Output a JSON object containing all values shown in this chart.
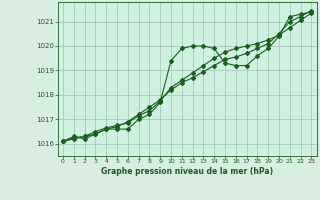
{
  "bg_color": "#d8eee0",
  "plot_bg_color": "#d0f0e0",
  "grid_color": "#a8c8b8",
  "line_color": "#1a5e20",
  "title": "Graphe pression niveau de la mer (hPa)",
  "xlim": [
    -0.5,
    23.5
  ],
  "ylim": [
    1015.5,
    1021.8
  ],
  "yticks": [
    1016,
    1017,
    1018,
    1019,
    1020,
    1021
  ],
  "xticks": [
    0,
    1,
    2,
    3,
    4,
    5,
    6,
    7,
    8,
    9,
    10,
    11,
    12,
    13,
    14,
    15,
    16,
    17,
    18,
    19,
    20,
    21,
    22,
    23
  ],
  "series1_x": [
    0,
    1,
    2,
    3,
    4,
    5,
    6,
    7,
    8,
    9,
    10,
    11,
    12,
    13,
    14,
    15,
    16,
    17,
    18,
    19,
    20,
    21,
    22,
    23
  ],
  "series1_y": [
    1016.1,
    1016.3,
    1016.2,
    1016.4,
    1016.6,
    1016.6,
    1016.6,
    1017.0,
    1017.2,
    1017.7,
    1019.4,
    1019.9,
    1020.0,
    1020.0,
    1019.9,
    1019.3,
    1019.2,
    1019.2,
    1019.6,
    1019.9,
    1020.4,
    1021.2,
    1021.3,
    1021.4
  ],
  "series2_x": [
    0,
    1,
    2,
    3,
    4,
    5,
    6,
    7,
    8,
    9,
    10,
    11,
    12,
    13,
    14,
    15,
    16,
    17,
    18,
    19,
    20,
    21,
    22,
    23
  ],
  "series2_y": [
    1016.1,
    1016.2,
    1016.3,
    1016.4,
    1016.6,
    1016.7,
    1016.9,
    1017.2,
    1017.5,
    1017.8,
    1018.2,
    1018.5,
    1018.7,
    1018.95,
    1019.2,
    1019.45,
    1019.55,
    1019.7,
    1019.9,
    1020.1,
    1020.5,
    1021.0,
    1021.2,
    1021.45
  ],
  "series3_x": [
    0,
    1,
    2,
    3,
    4,
    5,
    6,
    7,
    8,
    9,
    10,
    11,
    12,
    13,
    14,
    15,
    16,
    17,
    18,
    19,
    20,
    21,
    22,
    23
  ],
  "series3_y": [
    1016.1,
    1016.25,
    1016.3,
    1016.5,
    1016.65,
    1016.75,
    1016.85,
    1017.15,
    1017.35,
    1017.75,
    1018.3,
    1018.6,
    1018.9,
    1019.2,
    1019.5,
    1019.75,
    1019.9,
    1020.0,
    1020.1,
    1020.25,
    1020.45,
    1020.75,
    1021.05,
    1021.35
  ]
}
